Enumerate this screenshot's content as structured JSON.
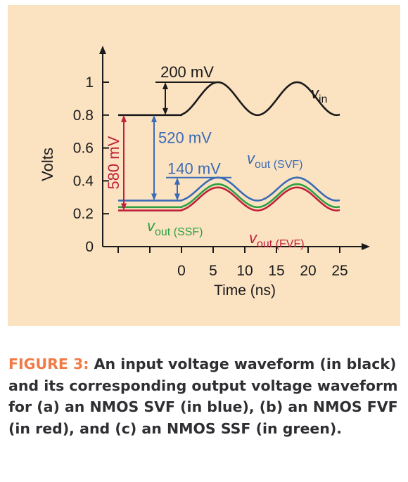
{
  "chart_data": {
    "type": "line",
    "ylabel": "Volts",
    "xlabel": "Time (ns)",
    "xticks": [
      0,
      5,
      10,
      15,
      20,
      25
    ],
    "yticks": [
      0,
      0.2,
      0.4,
      0.6,
      0.8,
      1
    ],
    "ytick_labels": [
      "0",
      "0.2",
      "0.4",
      "0.6",
      "0.8",
      "1"
    ],
    "xlim": [
      -10,
      28
    ],
    "ylim": [
      0,
      1.1
    ],
    "grid": false,
    "series": [
      {
        "name": "v_in",
        "label_main": "v",
        "label_sub": "in",
        "color": "#1a1a1a",
        "dc": 0.8,
        "amplitude": 0.2
      },
      {
        "name": "v_out (SVF)",
        "label_main": "v",
        "label_sub": "out (SVF)",
        "color": "#3a6bb5",
        "dc": 0.28,
        "amplitude": 0.14
      },
      {
        "name": "v_out (SSF)",
        "label_main": "v",
        "label_sub": "out (SSF)",
        "color": "#2ea043",
        "dc": 0.24,
        "amplitude": 0.14
      },
      {
        "name": "v_out (FVF)",
        "label_main": "v",
        "label_sub": "out (FVF)",
        "color": "#c0203a",
        "dc": 0.22,
        "amplitude": 0.14
      }
    ],
    "waveform": {
      "start_ns": 0,
      "period_ns": 12.5,
      "offset_ns": 0.5
    },
    "annotations": [
      {
        "text": "200 mV",
        "color": "#1a1a1a"
      },
      {
        "text": "520 mV",
        "color": "#3a6bb5"
      },
      {
        "text": "140 mV",
        "color": "#3a6bb5"
      },
      {
        "text": "580 mV",
        "color": "#c0203a"
      }
    ]
  },
  "caption": {
    "label": "FIGURE 3:",
    "text": " An input voltage waveform (in black) and its corresponding output voltage waveform for (a) an NMOS SVF (in blue), (b) an NMOS FVF (in red), and (c) an NMOS SSF (in green)."
  },
  "colors": {
    "panel_bg": "#fbe3c2",
    "caption_label": "#f07a45",
    "caption_text": "#2f2f33"
  }
}
